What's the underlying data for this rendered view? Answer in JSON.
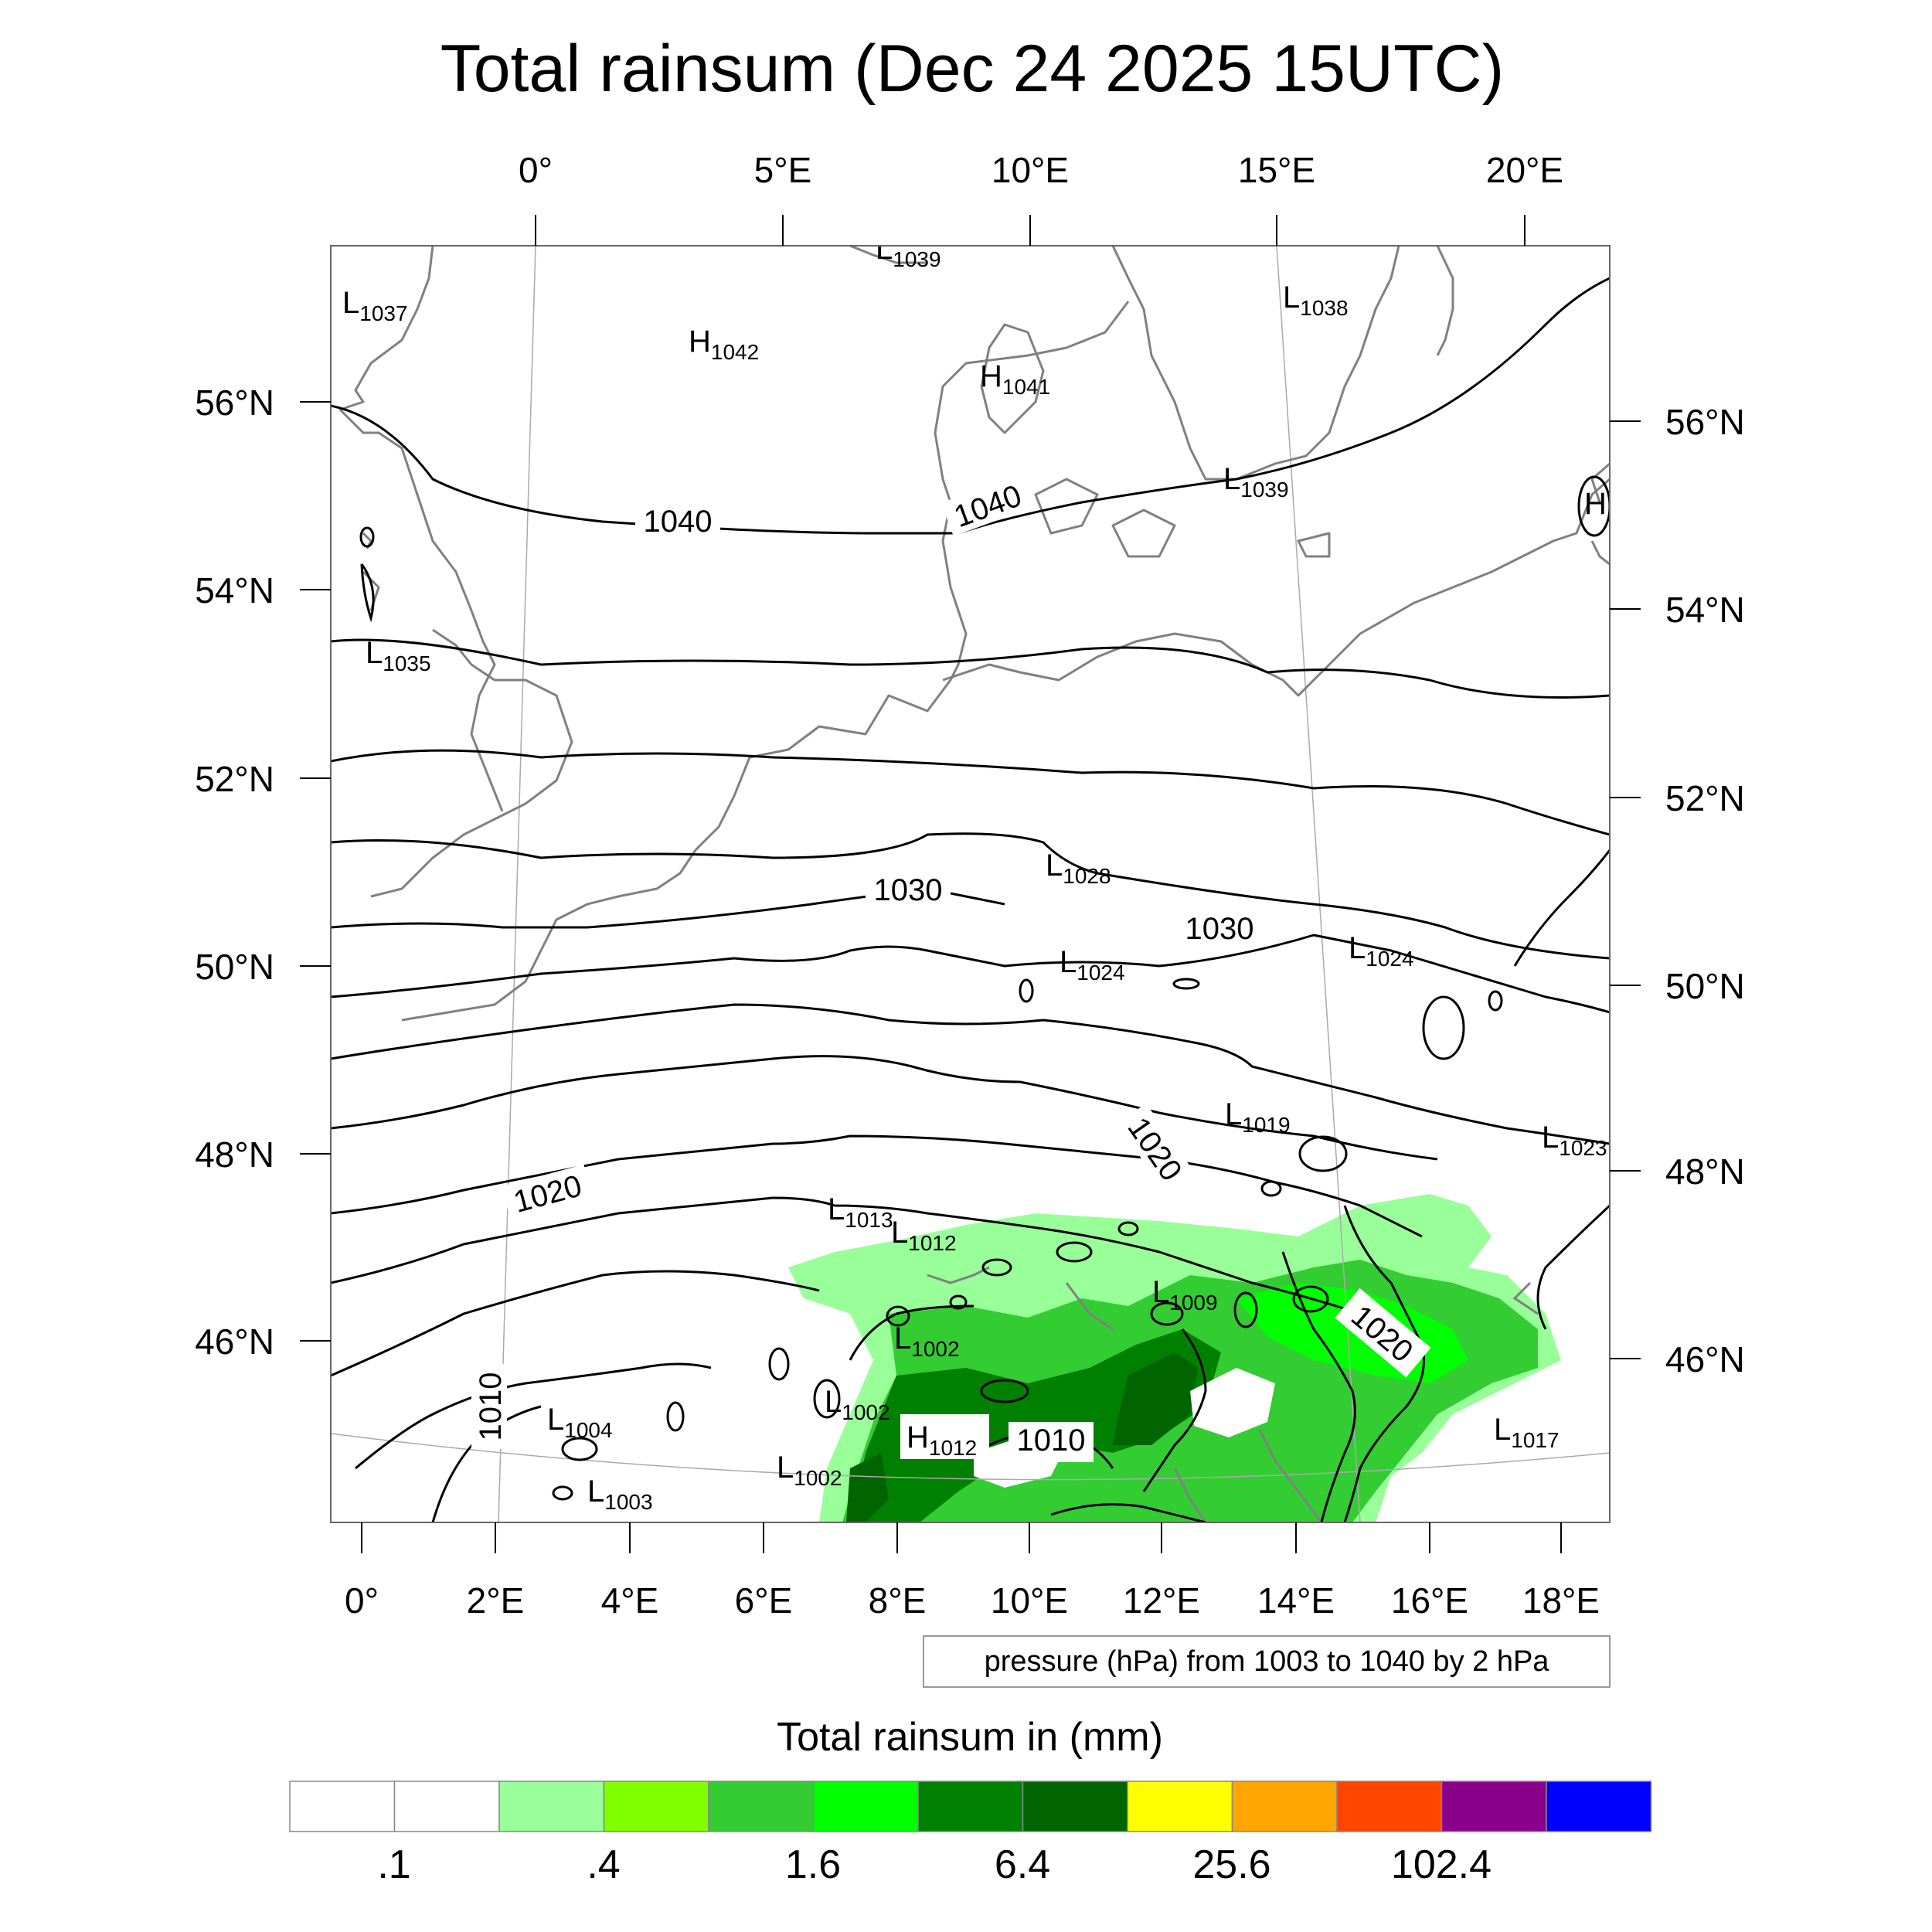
{
  "title": "Total rainsum (Dec 24 2025 15UTC)",
  "top_lon_labels": [
    "0°",
    "5°E",
    "10°E",
    "15°E",
    "20°E"
  ],
  "bottom_lon_labels": [
    "0°",
    "2°E",
    "4°E",
    "6°E",
    "8°E",
    "10°E",
    "12°E",
    "14°E",
    "16°E",
    "18°E"
  ],
  "left_lat_labels": [
    "56°N",
    "54°N",
    "52°N",
    "50°N",
    "48°N",
    "46°N"
  ],
  "right_lat_labels": [
    "56°N",
    "54°N",
    "52°N",
    "50°N",
    "48°N",
    "46°N"
  ],
  "pressure_centers": [
    {
      "type": "L",
      "value": "1039"
    },
    {
      "type": "L",
      "value": "1037"
    },
    {
      "type": "H",
      "value": "1042"
    },
    {
      "type": "H",
      "value": "1041"
    },
    {
      "type": "L",
      "value": "1038"
    },
    {
      "type": "L",
      "value": "1039"
    },
    {
      "type": "L",
      "value": "1035"
    },
    {
      "type": "L",
      "value": "1028"
    },
    {
      "type": "L",
      "value": "1024"
    },
    {
      "type": "L",
      "value": "1024"
    },
    {
      "type": "L",
      "value": "1019"
    },
    {
      "type": "L",
      "value": "1023"
    },
    {
      "type": "L",
      "value": "1013"
    },
    {
      "type": "L",
      "value": "1012"
    },
    {
      "type": "L",
      "value": "1009"
    },
    {
      "type": "L",
      "value": "1002"
    },
    {
      "type": "L",
      "value": "1002"
    },
    {
      "type": "L",
      "value": "1004"
    },
    {
      "type": "H",
      "value": "1012"
    },
    {
      "type": "L",
      "value": "1002"
    },
    {
      "type": "L",
      "value": "1003"
    },
    {
      "type": "L",
      "value": "1017"
    }
  ],
  "edge_marker": "H",
  "contour_labels": [
    "1040",
    "1040",
    "1030",
    "1030",
    "1020",
    "1020",
    "1020",
    "1010",
    "1010"
  ],
  "contour_info": "pressure (hPa) from 1003 to 1040 by 2 hPa",
  "colorbar": {
    "title": "Total rainsum in (mm)",
    "colors": [
      "#ffffff",
      "#ffffff",
      "#99ff99",
      "#80ff00",
      "#33cc33",
      "#00ff00",
      "#008000",
      "#006400",
      "#ffff00",
      "#ffa500",
      "#ff4500",
      "#8b008b",
      "#0000ff"
    ],
    "labels": [
      ".1",
      ".4",
      "1.6",
      "6.4",
      "25.6",
      "102.4"
    ]
  }
}
